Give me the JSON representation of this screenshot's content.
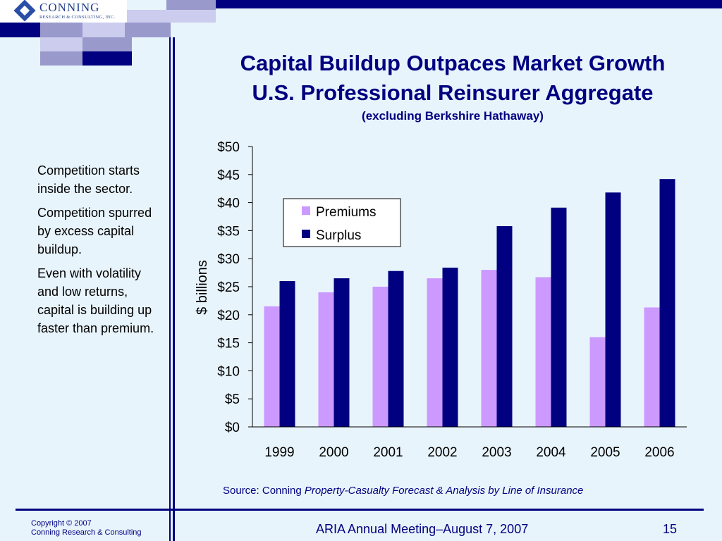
{
  "logo": {
    "name": "CONNING",
    "subtitle": "RESEARCH & CONSULTING, INC."
  },
  "title": {
    "line1": "Capital Buildup Outpaces Market Growth",
    "line2": "U.S. Professional Reinsurer Aggregate",
    "line3": "(excluding Berkshire Hathaway)"
  },
  "sidebar": {
    "points": [
      "Competition starts inside the sector.",
      "Competition spurred by excess capital buildup.",
      "Even with volatility and low returns, capital is building up faster than premium."
    ]
  },
  "source": {
    "prefix": "Source: Conning",
    "publication": "Property-Casualty Forecast & Analysis by Line of Insurance"
  },
  "footer": {
    "copyright_line1": "Copyright © 2007",
    "copyright_line2": "Conning Research & Consulting",
    "meeting": "ARIA Annual Meeting–August 7, 2007",
    "page_number": "15"
  },
  "colors": {
    "navy": "#000080",
    "premiums": "#cc99ff",
    "surplus": "#000080",
    "background": "#e8f4fc"
  },
  "chart_data": {
    "type": "bar",
    "categories": [
      "1999",
      "2000",
      "2001",
      "2002",
      "2003",
      "2004",
      "2005",
      "2006"
    ],
    "series": [
      {
        "name": "Premiums",
        "color": "#cc99ff",
        "values": [
          21.5,
          24.0,
          25.0,
          26.5,
          28.0,
          26.7,
          16.0,
          21.3
        ]
      },
      {
        "name": "Surplus",
        "color": "#000080",
        "values": [
          26.0,
          26.5,
          27.8,
          28.4,
          35.8,
          39.1,
          41.8,
          44.2
        ]
      }
    ],
    "ylabel": "$ billions",
    "ylim": [
      0,
      50
    ],
    "yticks": [
      0,
      5,
      10,
      15,
      20,
      25,
      30,
      35,
      40,
      45,
      50
    ],
    "ytick_labels": [
      "$0",
      "$5",
      "$10",
      "$15",
      "$20",
      "$25",
      "$30",
      "$35",
      "$40",
      "$45",
      "$50"
    ],
    "grid": false,
    "legend_position": "top-left inside plot"
  }
}
